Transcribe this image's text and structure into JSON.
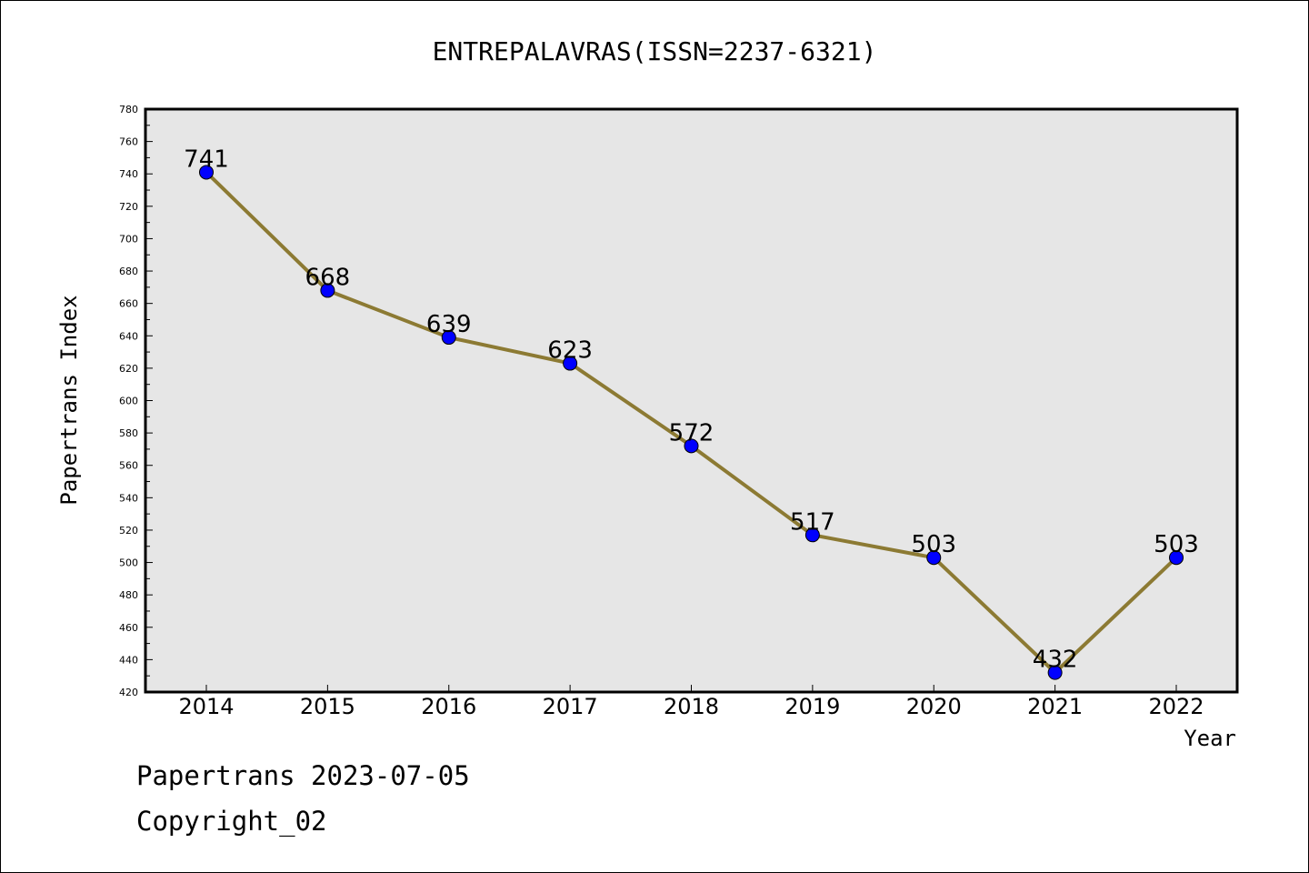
{
  "footer": {
    "line1": "Papertrans 2023-07-05",
    "line2": "Copyright_02"
  },
  "chart_data": {
    "type": "line",
    "title": "ENTREPALAVRAS(ISSN=2237-6321)",
    "xlabel": "Year",
    "ylabel": "Papertrans Index",
    "categories": [
      "2014",
      "2015",
      "2016",
      "2017",
      "2018",
      "2019",
      "2020",
      "2021",
      "2022"
    ],
    "values": [
      741,
      668,
      639,
      623,
      572,
      517,
      503,
      432,
      503
    ],
    "ylim": [
      420,
      780
    ],
    "ytick_step": 20,
    "grid": false,
    "colors": {
      "plot_background": "#e6e6e6",
      "line": "#8c7a33",
      "marker": "#0000ff"
    }
  }
}
